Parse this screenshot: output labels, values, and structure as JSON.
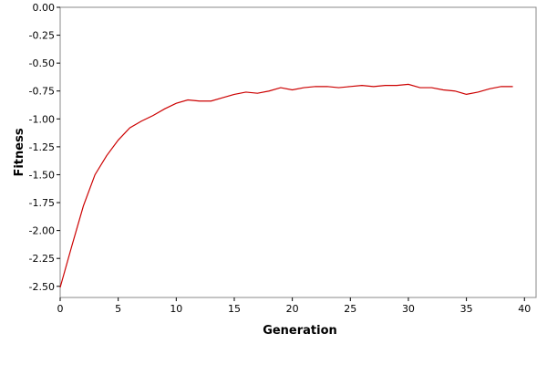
{
  "chart_data": {
    "type": "line",
    "xlabel": "Generation",
    "ylabel": "Fitness",
    "xlim": [
      0,
      41
    ],
    "ylim": [
      -2.6,
      0.0
    ],
    "xticks": [
      0,
      5,
      10,
      15,
      20,
      25,
      30,
      35,
      40
    ],
    "yticks": [
      0.0,
      -0.25,
      -0.5,
      -0.75,
      -1.0,
      -1.25,
      -1.5,
      -1.75,
      -2.0,
      -2.25,
      -2.5
    ],
    "xtick_labels": [
      "0",
      "5",
      "10",
      "15",
      "20",
      "25",
      "30",
      "35",
      "40"
    ],
    "ytick_labels": [
      "0.00",
      "-0.25",
      "-0.50",
      "-0.75",
      "-1.00",
      "-1.25",
      "-1.50",
      "-1.75",
      "-2.00",
      "-2.25",
      "-2.50"
    ],
    "grid": false,
    "legend": "none",
    "series": [
      {
        "color": "#cc0000",
        "x": [
          0,
          1,
          2,
          3,
          4,
          5,
          6,
          7,
          8,
          9,
          10,
          11,
          12,
          13,
          14,
          15,
          16,
          17,
          18,
          19,
          20,
          21,
          22,
          23,
          24,
          25,
          26,
          27,
          28,
          29,
          30,
          31,
          32,
          33,
          34,
          35,
          36,
          37,
          38,
          39
        ],
        "y": [
          -2.51,
          -2.14,
          -1.78,
          -1.5,
          -1.33,
          -1.19,
          -1.08,
          -1.02,
          -0.97,
          -0.91,
          -0.86,
          -0.83,
          -0.84,
          -0.84,
          -0.81,
          -0.78,
          -0.76,
          -0.77,
          -0.75,
          -0.72,
          -0.74,
          -0.72,
          -0.71,
          -0.71,
          -0.72,
          -0.71,
          -0.7,
          -0.71,
          -0.7,
          -0.7,
          -0.69,
          -0.72,
          -0.72,
          -0.74,
          -0.75,
          -0.78,
          -0.76,
          -0.73,
          -0.71,
          -0.71
        ]
      }
    ]
  }
}
